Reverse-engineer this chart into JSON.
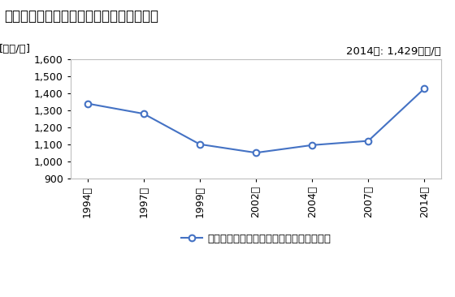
{
  "title": "小売業の従業者一人当たり年間商品販売額",
  "ylabel": "[万円/人]",
  "annotation": "2014年: 1,429万円/人",
  "legend_label": "小売業の従業者一人当たり年間商品販売額",
  "years": [
    "1994年",
    "1997年",
    "1999年",
    "2002年",
    "2004年",
    "2007年",
    "2014年"
  ],
  "values": [
    1340,
    1280,
    1100,
    1050,
    1095,
    1120,
    1429
  ],
  "ylim": [
    900,
    1600
  ],
  "yticks": [
    900,
    1000,
    1100,
    1200,
    1300,
    1400,
    1500,
    1600
  ],
  "line_color": "#4472C4",
  "marker_color": "#4472C4",
  "bg_color": "#FFFFFF",
  "plot_bg_color": "#FFFFFF",
  "border_color": "#BFBFBF",
  "title_fontsize": 12,
  "label_fontsize": 9.5,
  "tick_fontsize": 9,
  "annotation_fontsize": 9.5
}
